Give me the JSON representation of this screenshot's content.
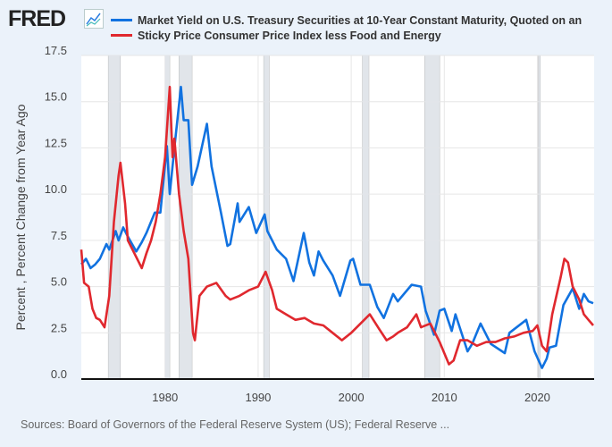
{
  "header": {
    "logo": "FRED",
    "logo_icon": "line-chart-icon"
  },
  "chart_data": {
    "type": "line",
    "title": "",
    "ylabel": "Percent , Percent Change from Year Ago",
    "xlabel": "",
    "ylim": [
      0,
      17.5
    ],
    "xlim": [
      1971,
      2026.1
    ],
    "yticks": [
      "0.0",
      "2.5",
      "5.0",
      "7.5",
      "10.0",
      "12.5",
      "15.0",
      "17.5"
    ],
    "ytick_values": [
      0,
      2.5,
      5,
      7.5,
      10,
      12.5,
      15,
      17.5
    ],
    "xticks": [
      "1980",
      "1990",
      "2000",
      "2010",
      "2020"
    ],
    "xtick_values": [
      1980,
      1990,
      2000,
      2010,
      2020
    ],
    "grid": true,
    "legend_placement": "top",
    "recessions": [
      [
        1973.9,
        1975.2
      ],
      [
        1980.0,
        1980.5
      ],
      [
        1981.5,
        1982.9
      ],
      [
        1990.6,
        1991.2
      ],
      [
        2001.2,
        2001.9
      ],
      [
        2007.9,
        2009.5
      ],
      [
        2020.1,
        2020.3
      ]
    ],
    "series": [
      {
        "name": "Market Yield on U.S. Treasury Securities at 10-Year Constant Maturity, Quoted on an",
        "color": "#1172e0",
        "x": [
          1971,
          1971.5,
          1972,
          1972.5,
          1973,
          1973.7,
          1974,
          1974.7,
          1975,
          1975.5,
          1976,
          1976.9,
          1977.5,
          1978,
          1978.9,
          1979.5,
          1980.2,
          1980.5,
          1981,
          1981.7,
          1982,
          1982.5,
          1982.9,
          1983.5,
          1984.5,
          1985,
          1986,
          1986.7,
          1987,
          1987.8,
          1988,
          1989,
          1989.8,
          1990.7,
          1991,
          1992,
          1993,
          1993.8,
          1994.9,
          1995.5,
          1996,
          1996.5,
          1997,
          1998,
          1998.8,
          1999.9,
          2000.2,
          2001,
          2002,
          2002.8,
          2003.5,
          2004.5,
          2005,
          2006.5,
          2007.5,
          2008,
          2008.9,
          2009.5,
          2010,
          2010.8,
          2011.2,
          2012.5,
          2013,
          2013.9,
          2015,
          2016.5,
          2017,
          2018.8,
          2019.7,
          2020.5,
          2021,
          2021.3,
          2022,
          2022.8,
          2023.8,
          2024.5,
          2025,
          2025.5,
          2026
        ],
        "values": [
          6.2,
          6.5,
          6.0,
          6.2,
          6.5,
          7.3,
          7.0,
          8.0,
          7.5,
          8.2,
          7.7,
          6.9,
          7.4,
          7.9,
          9.0,
          9.0,
          12.6,
          10.0,
          12.5,
          15.8,
          14.0,
          14.0,
          10.5,
          11.5,
          13.8,
          11.5,
          9.0,
          7.2,
          7.3,
          9.5,
          8.5,
          9.3,
          7.9,
          8.9,
          8.0,
          7.0,
          6.5,
          5.3,
          7.9,
          6.3,
          5.6,
          6.9,
          6.4,
          5.6,
          4.5,
          6.4,
          6.5,
          5.1,
          5.1,
          3.9,
          3.3,
          4.6,
          4.2,
          5.1,
          5.0,
          3.7,
          2.4,
          3.7,
          3.8,
          2.6,
          3.5,
          1.5,
          1.9,
          3.0,
          1.9,
          1.4,
          2.5,
          3.2,
          1.5,
          0.6,
          1.1,
          1.7,
          1.8,
          4.0,
          4.9,
          3.8,
          4.6,
          4.2,
          4.1
        ]
      },
      {
        "name": "Sticky Price Consumer Price Index less Food and Energy",
        "color": "#e0282e",
        "x": [
          1971,
          1971.3,
          1971.8,
          1972.2,
          1972.6,
          1973,
          1973.5,
          1974,
          1974.5,
          1975,
          1975.2,
          1975.7,
          1976,
          1976.5,
          1977,
          1977.5,
          1978,
          1978.5,
          1979,
          1979.5,
          1980,
          1980.5,
          1980.8,
          1981,
          1981.5,
          1982,
          1982.5,
          1983,
          1983.2,
          1983.7,
          1984.5,
          1985.5,
          1986.5,
          1987,
          1988,
          1989,
          1990,
          1990.8,
          1991.5,
          1992,
          1993,
          1994,
          1995,
          1996,
          1997,
          1998,
          1999,
          2000,
          2001,
          2002,
          2003,
          2003.8,
          2004.5,
          2005,
          2006,
          2007,
          2007.5,
          2008.5,
          2009.5,
          2010.5,
          2011,
          2011.7,
          2012.5,
          2013.5,
          2014.5,
          2015.5,
          2016.5,
          2017.5,
          2018.5,
          2019.5,
          2020,
          2020.5,
          2021,
          2021.6,
          2022.5,
          2022.9,
          2023.3,
          2023.8,
          2024.5,
          2025,
          2025.5,
          2026
        ],
        "values": [
          7.0,
          5.2,
          5.0,
          3.8,
          3.3,
          3.2,
          2.8,
          4.5,
          8.5,
          11.0,
          11.7,
          9.5,
          7.5,
          7.0,
          6.5,
          6.0,
          6.8,
          7.5,
          8.5,
          10.0,
          12.0,
          15.8,
          12.0,
          13.0,
          10.0,
          8.0,
          6.5,
          2.5,
          2.1,
          4.5,
          5.0,
          5.2,
          4.5,
          4.3,
          4.5,
          4.8,
          5.0,
          5.8,
          4.8,
          3.8,
          3.5,
          3.2,
          3.3,
          3.0,
          2.9,
          2.5,
          2.1,
          2.5,
          3.0,
          3.5,
          2.7,
          2.1,
          2.3,
          2.5,
          2.8,
          3.5,
          2.8,
          3.0,
          2.0,
          0.8,
          1.0,
          2.1,
          2.1,
          1.8,
          2.0,
          2.0,
          2.2,
          2.3,
          2.5,
          2.6,
          2.9,
          1.8,
          1.5,
          3.5,
          5.5,
          6.5,
          6.3,
          5.0,
          4.3,
          3.5,
          3.2,
          2.9
        ]
      }
    ]
  },
  "footer": {
    "source": "Sources: Board of Governors of the Federal Reserve System (US); Federal Reserve ..."
  }
}
